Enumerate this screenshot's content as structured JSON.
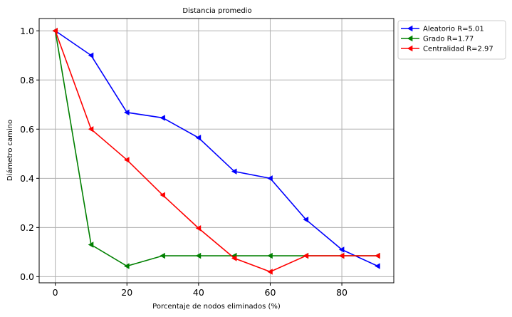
{
  "chart_data": {
    "type": "line",
    "title": "Distancia promedio",
    "xlabel": "Porcentaje de nodos eliminados (%)",
    "ylabel": "Diámetro camino",
    "x": [
      0,
      10,
      20,
      30,
      40,
      50,
      60,
      70,
      80,
      90
    ],
    "xlim": [
      -4.5,
      94.5
    ],
    "ylim": [
      -0.025,
      1.05
    ],
    "xticks": [
      0,
      20,
      40,
      60,
      80
    ],
    "yticks": [
      0.0,
      0.2,
      0.4,
      0.6,
      0.8,
      1.0
    ],
    "xtick_labels": [
      "0",
      "20",
      "40",
      "60",
      "80"
    ],
    "ytick_labels": [
      "0.0",
      "0.2",
      "0.4",
      "0.6",
      "0.8",
      "1.0"
    ],
    "grid": true,
    "legend_position": "outside top-right",
    "marker": "left-pointing triangle",
    "series": [
      {
        "name": "Aleatorio R=5.01",
        "color": "#0000ff",
        "values": [
          1.0,
          0.9,
          0.668,
          0.646,
          0.565,
          0.428,
          0.4,
          0.232,
          0.11,
          0.043
        ]
      },
      {
        "name": "Grado R=1.77",
        "color": "#008000",
        "values": [
          1.0,
          0.13,
          0.043,
          0.085,
          0.085,
          0.085,
          0.085,
          0.085,
          0.085,
          0.085
        ]
      },
      {
        "name": "Centralidad R=2.97",
        "color": "#ff0000",
        "values": [
          1.0,
          0.6,
          0.475,
          0.332,
          0.197,
          0.075,
          0.02,
          0.085,
          0.085,
          0.085
        ]
      }
    ]
  }
}
